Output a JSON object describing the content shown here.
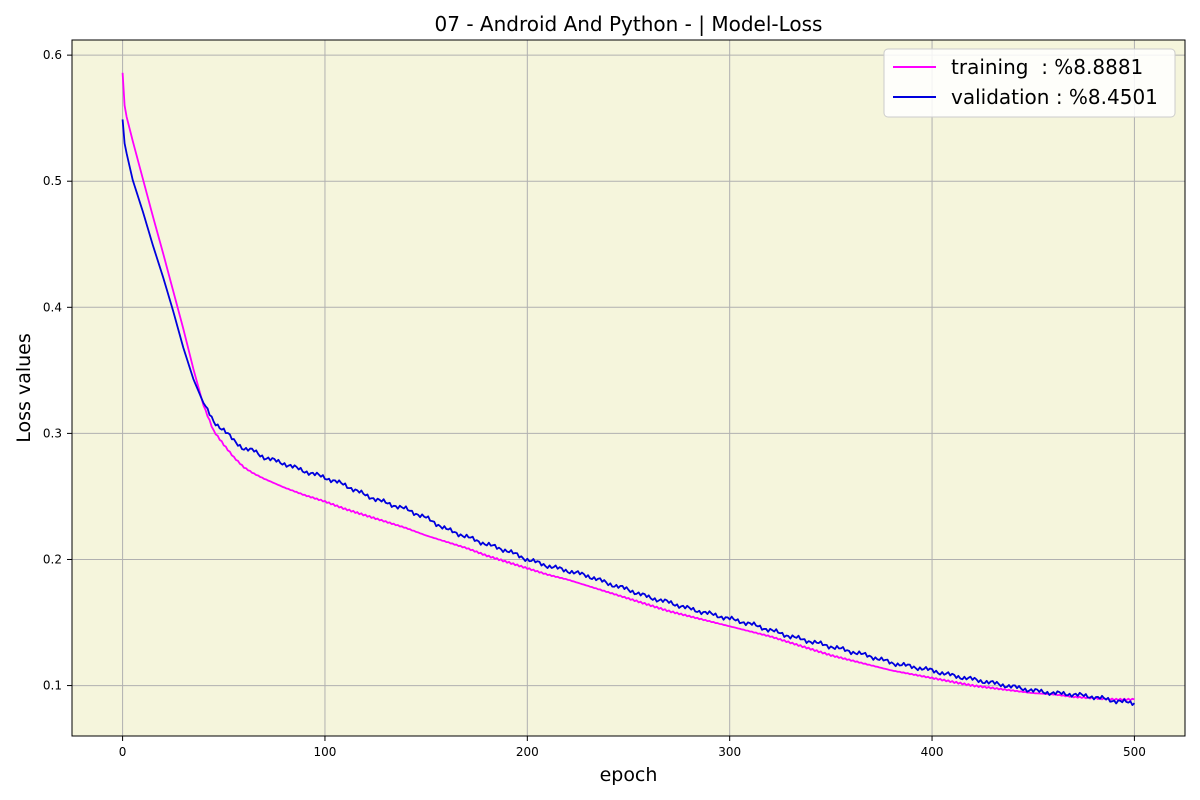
{
  "chart_data": {
    "type": "line",
    "title": "07 - Android And Python - | Model-Loss",
    "xlabel": "epoch",
    "ylabel": "Loss values",
    "xlim": [
      -25,
      525
    ],
    "ylim": [
      0.06,
      0.612
    ],
    "xticks": [
      0,
      100,
      200,
      300,
      400,
      500
    ],
    "yticks": [
      0.1,
      0.2,
      0.3,
      0.4,
      0.5,
      0.6
    ],
    "xtick_labels": [
      "0",
      "100",
      "200",
      "300",
      "400",
      "500"
    ],
    "ytick_labels": [
      "0.1",
      "0.2",
      "0.3",
      "0.4",
      "0.5",
      "0.6"
    ],
    "grid": true,
    "legend_position": "top-right",
    "background_color": "#f5f5dc",
    "series": [
      {
        "name": "training  : %8.8881",
        "color": "#ff00ff",
        "x": [
          0,
          1,
          2,
          5,
          10,
          15,
          20,
          25,
          30,
          35,
          40,
          45,
          50,
          55,
          60,
          65,
          70,
          80,
          90,
          100,
          110,
          120,
          130,
          140,
          150,
          160,
          170,
          180,
          190,
          200,
          210,
          220,
          230,
          240,
          250,
          260,
          270,
          280,
          290,
          300,
          310,
          320,
          330,
          340,
          350,
          360,
          370,
          380,
          390,
          400,
          410,
          420,
          430,
          440,
          450,
          460,
          470,
          480,
          490,
          500
        ],
        "y": [
          0.586,
          0.56,
          0.551,
          0.532,
          0.502,
          0.472,
          0.443,
          0.413,
          0.383,
          0.351,
          0.322,
          0.302,
          0.291,
          0.281,
          0.273,
          0.268,
          0.264,
          0.257,
          0.251,
          0.246,
          0.24,
          0.235,
          0.23,
          0.225,
          0.219,
          0.214,
          0.209,
          0.203,
          0.198,
          0.193,
          0.188,
          0.184,
          0.179,
          0.174,
          0.169,
          0.164,
          0.159,
          0.155,
          0.151,
          0.147,
          0.143,
          0.139,
          0.134,
          0.129,
          0.124,
          0.12,
          0.116,
          0.112,
          0.109,
          0.106,
          0.103,
          0.1,
          0.098,
          0.096,
          0.094,
          0.093,
          0.091,
          0.09,
          0.089,
          0.089
        ]
      },
      {
        "name": "validation : %8.4501",
        "color": "#0000dd",
        "x": [
          0,
          1,
          2,
          5,
          10,
          15,
          20,
          25,
          30,
          35,
          40,
          45,
          50,
          55,
          60,
          65,
          70,
          80,
          90,
          100,
          110,
          120,
          130,
          140,
          150,
          160,
          170,
          180,
          190,
          200,
          210,
          220,
          230,
          240,
          250,
          260,
          270,
          280,
          290,
          300,
          310,
          320,
          330,
          340,
          350,
          360,
          370,
          380,
          390,
          400,
          410,
          420,
          430,
          440,
          450,
          460,
          470,
          480,
          490,
          500
        ],
        "y": [
          0.549,
          0.53,
          0.522,
          0.501,
          0.476,
          0.449,
          0.424,
          0.397,
          0.368,
          0.343,
          0.324,
          0.309,
          0.303,
          0.294,
          0.288,
          0.286,
          0.281,
          0.276,
          0.27,
          0.265,
          0.259,
          0.251,
          0.245,
          0.24,
          0.233,
          0.224,
          0.218,
          0.212,
          0.207,
          0.2,
          0.195,
          0.191,
          0.187,
          0.181,
          0.176,
          0.17,
          0.166,
          0.161,
          0.157,
          0.153,
          0.149,
          0.144,
          0.139,
          0.135,
          0.131,
          0.127,
          0.123,
          0.118,
          0.115,
          0.112,
          0.108,
          0.105,
          0.102,
          0.099,
          0.096,
          0.094,
          0.093,
          0.091,
          0.088,
          0.086
        ]
      }
    ]
  }
}
